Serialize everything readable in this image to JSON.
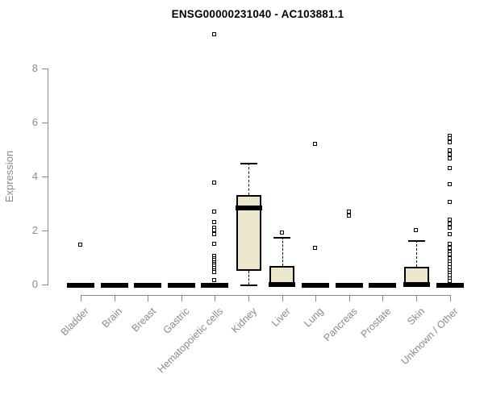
{
  "page": {
    "background": "#ffffff"
  },
  "chart_data": {
    "type": "boxplot",
    "title": "ENSG00000231040 - AC103881.1",
    "xlabel": "",
    "ylabel": "Expression",
    "yticks": [
      0,
      2,
      4,
      6,
      8
    ],
    "ylim": [
      0,
      9.5
    ],
    "grid": false,
    "legend": "none",
    "colors": {
      "box_fill": "#ece6cc",
      "box_border": "#000000",
      "axis": "#8a8a8a",
      "tick_label": "#8a8a8a",
      "title": "#000000",
      "outlier_fill": "#ffffff",
      "outlier_border": "#000000"
    },
    "categories": [
      "Bladder",
      "Brain",
      "Breast",
      "Gastric",
      "Hematopoietic cells",
      "Kidney",
      "Liver",
      "Lung",
      "Pancreas",
      "Prostate",
      "Skin",
      "Unknown / Other"
    ],
    "boxes": [
      {
        "category": "Bladder",
        "q1": 0,
        "median": 0,
        "q3": 0,
        "whisker_low": 0,
        "whisker_high": 0,
        "outliers": [
          1.45
        ]
      },
      {
        "category": "Brain",
        "q1": 0,
        "median": 0,
        "q3": 0,
        "whisker_low": 0,
        "whisker_high": 0,
        "outliers": []
      },
      {
        "category": "Breast",
        "q1": 0,
        "median": 0,
        "q3": 0,
        "whisker_low": 0,
        "whisker_high": 0,
        "outliers": []
      },
      {
        "category": "Gastric",
        "q1": 0,
        "median": 0,
        "q3": 0,
        "whisker_low": 0,
        "whisker_high": 0,
        "outliers": []
      },
      {
        "category": "Hematopoietic cells",
        "q1": 0,
        "median": 0,
        "q3": 0,
        "whisker_low": 0,
        "whisker_high": 0,
        "outliers": [
          9.25,
          3.75,
          2.7,
          2.3,
          2.1,
          2.0,
          1.85,
          1.5,
          1.05,
          0.97,
          0.9,
          0.82,
          0.75,
          0.68,
          0.6,
          0.52,
          0.45,
          0.15
        ]
      },
      {
        "category": "Kidney",
        "q1": 0.5,
        "median": 2.85,
        "q3": 3.3,
        "whisker_low": 0,
        "whisker_high": 4.5,
        "outliers": []
      },
      {
        "category": "Liver",
        "q1": 0,
        "median": 0,
        "q3": 0.7,
        "whisker_low": 0,
        "whisker_high": 1.75,
        "outliers": [
          1.9
        ]
      },
      {
        "category": "Lung",
        "q1": 0,
        "median": 0,
        "q3": 0,
        "whisker_low": 0,
        "whisker_high": 0,
        "outliers": [
          5.2,
          1.35
        ]
      },
      {
        "category": "Pancreas",
        "q1": 0,
        "median": 0,
        "q3": 0,
        "whisker_low": 0,
        "whisker_high": 0,
        "outliers": [
          2.7,
          2.55
        ]
      },
      {
        "category": "Prostate",
        "q1": 0,
        "median": 0,
        "q3": 0,
        "whisker_low": 0,
        "whisker_high": 0,
        "outliers": []
      },
      {
        "category": "Skin",
        "q1": 0,
        "median": 0,
        "q3": 0.65,
        "whisker_low": 0,
        "whisker_high": 1.65,
        "outliers": [
          2.0
        ]
      },
      {
        "category": "Unknown / Other",
        "q1": 0,
        "median": 0,
        "q3": 0,
        "whisker_low": 0,
        "whisker_high": 0,
        "outliers": [
          5.5,
          5.4,
          5.25,
          4.95,
          4.8,
          4.65,
          4.3,
          3.7,
          3.05,
          2.4,
          2.25,
          2.1,
          1.85,
          1.5,
          1.35,
          1.2,
          1.1,
          0.95,
          0.85,
          0.75,
          0.62,
          0.52,
          0.42,
          0.32,
          0.22,
          0.12
        ]
      }
    ]
  }
}
